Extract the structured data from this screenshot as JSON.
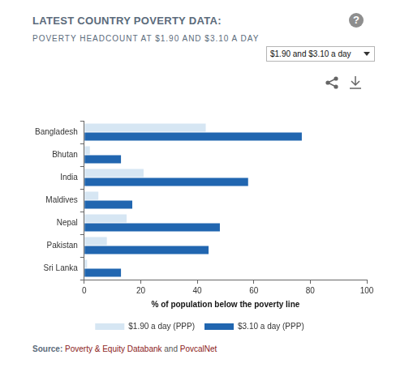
{
  "chart_data": {
    "type": "bar",
    "orientation": "horizontal",
    "title": "LATEST COUNTRY POVERTY DATA:",
    "subtitle": "POVERTY HEADCOUNT AT $1.90 AND $3.10 A DAY",
    "categories": [
      "Bangladesh",
      "Bhutan",
      "India",
      "Maldives",
      "Nepal",
      "Pakistan",
      "Sri Lanka"
    ],
    "series": [
      {
        "name": "$1.90 a day (PPP)",
        "color": "#d6e6f3",
        "values": [
          43,
          2,
          21,
          5,
          15,
          8,
          1
        ]
      },
      {
        "name": "$3.10 a day (PPP)",
        "color": "#2166b0",
        "values": [
          77,
          13,
          58,
          17,
          48,
          44,
          13
        ]
      }
    ],
    "x_label": "% of population below the poverty line",
    "xlim": [
      0,
      100
    ],
    "xticks": [
      0,
      20,
      40,
      60,
      80,
      100
    ],
    "grid": false,
    "legend": "bottom"
  },
  "controls": {
    "help": "?",
    "dropdown": "$1.90 and $3.10 a day"
  },
  "source": {
    "label": "Source:",
    "links": [
      "Poverty & Equity Databank",
      "PovcalNet"
    ],
    "joiner": "and"
  }
}
